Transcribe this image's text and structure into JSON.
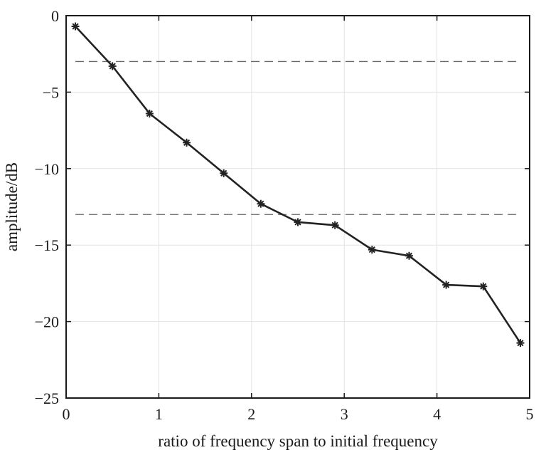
{
  "chart_data": {
    "type": "line",
    "xlabel": "ratio of frequency span to initial frequency",
    "ylabel": "amplitude/dB",
    "xlim": [
      0,
      5
    ],
    "ylim": [
      -25,
      0
    ],
    "xticks": [
      0,
      1,
      2,
      3,
      4,
      5
    ],
    "xtick_labels": [
      "0",
      "1",
      "2",
      "3",
      "4",
      "5"
    ],
    "yticks": [
      0,
      -5,
      -10,
      -15,
      -20,
      -25
    ],
    "ytick_labels": [
      "0",
      "−5",
      "−10",
      "−15",
      "−20",
      "−25"
    ],
    "grid": true,
    "marker": "asterisk",
    "line_color": "#222222",
    "reference_line_color": "#666666",
    "series": [
      {
        "x": [
          0.1,
          0.5,
          0.9,
          1.3,
          1.7,
          2.1,
          2.5,
          2.9,
          3.3,
          3.7,
          4.1,
          4.5,
          4.9
        ],
        "y": [
          -0.7,
          -3.3,
          -6.4,
          -8.3,
          -10.3,
          -12.3,
          -13.5,
          -13.7,
          -15.3,
          -15.7,
          -17.6,
          -17.7,
          -21.4
        ]
      }
    ],
    "reference_lines": [
      {
        "y": -3,
        "style": "dashed"
      },
      {
        "y": -13,
        "style": "dashed"
      }
    ]
  }
}
